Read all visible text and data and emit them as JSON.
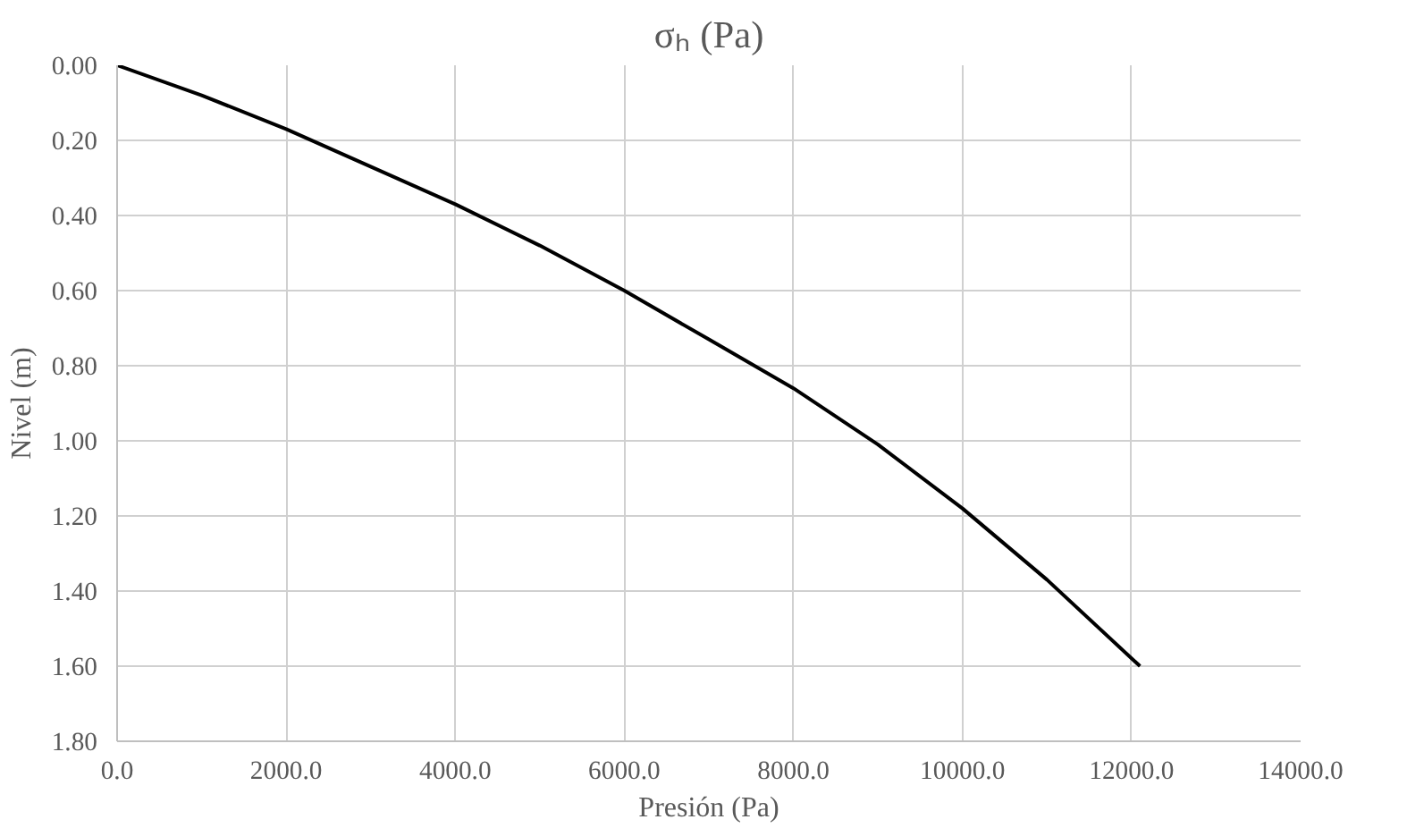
{
  "chart_data": {
    "type": "line",
    "title": "σₕ (Pa)",
    "xlabel": "Presión (Pa)",
    "ylabel": "Nivel (m)",
    "x": [
      0,
      1000,
      2000,
      3000,
      4000,
      5000,
      6000,
      7000,
      8000,
      9000,
      10000,
      11000,
      12100
    ],
    "series": [
      {
        "color": "#000000",
        "values": [
          0,
          0.08,
          0.17,
          0.27,
          0.37,
          0.48,
          0.6,
          0.73,
          0.86,
          1.01,
          1.18,
          1.37,
          1.6
        ]
      }
    ],
    "xlim": [
      0,
      14000
    ],
    "ylim": [
      1.8,
      0
    ],
    "xticks": [
      {
        "value": 0,
        "label": "0.0"
      },
      {
        "value": 2000,
        "label": "2000.0"
      },
      {
        "value": 4000,
        "label": "4000.0"
      },
      {
        "value": 6000,
        "label": "6000.0"
      },
      {
        "value": 8000,
        "label": "8000.0"
      },
      {
        "value": 10000,
        "label": "10000.0"
      },
      {
        "value": 12000,
        "label": "12000.0"
      },
      {
        "value": 14000,
        "label": "14000.0"
      }
    ],
    "yticks": [
      {
        "value": 0,
        "label": "0.00"
      },
      {
        "value": 0.2,
        "label": "0.20"
      },
      {
        "value": 0.4,
        "label": "0.40"
      },
      {
        "value": 0.6,
        "label": "0.60"
      },
      {
        "value": 0.8,
        "label": "0.80"
      },
      {
        "value": 1.0,
        "label": "1.00"
      },
      {
        "value": 1.2,
        "label": "1.20"
      },
      {
        "value": 1.4,
        "label": "1.40"
      },
      {
        "value": 1.6,
        "label": "1.60"
      },
      {
        "value": 1.8,
        "label": "1.80"
      }
    ],
    "grid": true,
    "marker": "none",
    "line_style": "solid"
  }
}
